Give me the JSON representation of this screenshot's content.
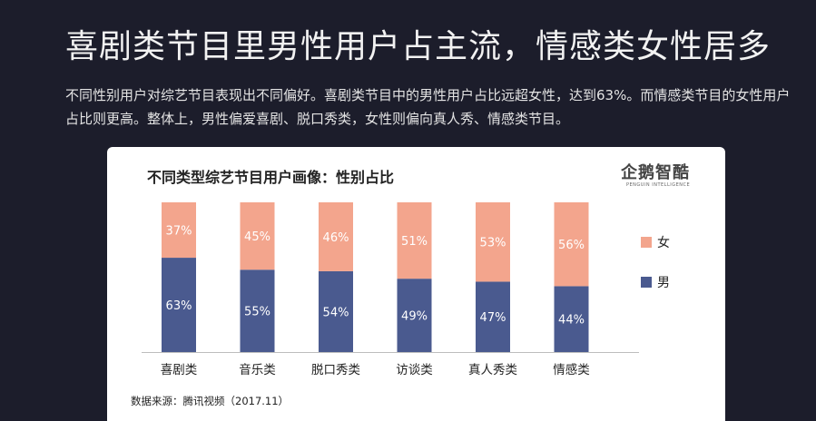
{
  "headline": "喜剧类节目里男性用户占主流，情感类女性居多",
  "description": "不同性别用户对综艺节目表现出不同偏好。喜剧类节目中的男性用户占比远超女性，达到63%。而情感类节目的女性用户占比则更高。整体上，男性偏爱喜剧、脱口秀类，女性则偏向真人秀、情感类节目。",
  "logo": {
    "text": "企鹅智酷",
    "subtext": "PENGUIN INTELLIGENCE"
  },
  "source": "数据来源：腾讯视频（2017.11）",
  "colors": {
    "male": "#4a5a8f",
    "female": "#f3a58d",
    "background": "#1c1d2b",
    "card": "#ffffff"
  },
  "chart_data": {
    "type": "bar",
    "stacked": true,
    "title": "不同类型综艺节目用户画像：性别占比",
    "categories": [
      "喜剧类",
      "音乐类",
      "脱口秀类",
      "访谈类",
      "真人秀类",
      "情感类"
    ],
    "series": [
      {
        "name": "男",
        "values": [
          63,
          55,
          54,
          49,
          47,
          44
        ],
        "labels": [
          "63%",
          "55%",
          "54%",
          "49%",
          "47%",
          "44%"
        ]
      },
      {
        "name": "女",
        "values": [
          37,
          45,
          46,
          51,
          53,
          56
        ],
        "labels": [
          "37%",
          "45%",
          "46%",
          "51%",
          "53%",
          "56%"
        ]
      }
    ],
    "ylim": [
      0,
      100
    ],
    "grid": false,
    "legend_position": "right"
  }
}
